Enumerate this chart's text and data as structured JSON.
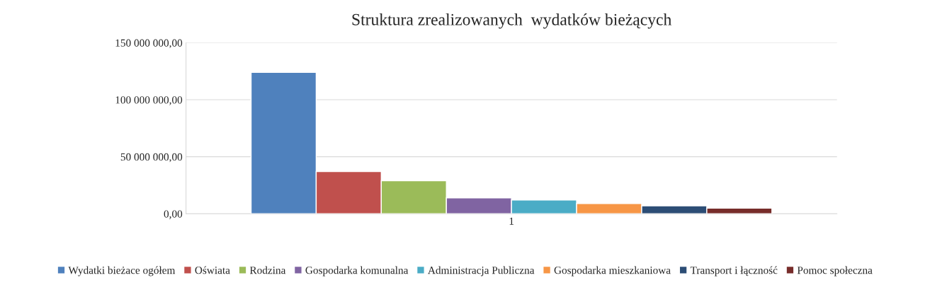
{
  "chart_data": {
    "type": "bar",
    "title": "Struktura zrealizowanych  wydatków bieżących",
    "categories": [
      "1"
    ],
    "series": [
      {
        "name": "Wydatki bieżace ogółem",
        "color": "#4f81bd",
        "values": [
          124000000
        ]
      },
      {
        "name": "Oświata",
        "color": "#c0504d",
        "values": [
          37000000
        ]
      },
      {
        "name": "Rodzina",
        "color": "#9bbb59",
        "values": [
          29000000
        ]
      },
      {
        "name": "Gospodarka komunalna",
        "color": "#8064a2",
        "values": [
          14000000
        ]
      },
      {
        "name": "Administracja Publiczna",
        "color": "#4bacc6",
        "values": [
          12000000
        ]
      },
      {
        "name": "Gospodarka mieszkaniowa",
        "color": "#f79646",
        "values": [
          9000000
        ]
      },
      {
        "name": "Transport i łączność",
        "color": "#2c4d75",
        "values": [
          7000000
        ]
      },
      {
        "name": "Pomoc społeczna",
        "color": "#772c2a",
        "values": [
          5000000
        ]
      }
    ],
    "ylim": [
      0,
      150000000
    ],
    "yticks": [
      {
        "value": 0,
        "label": "0,00"
      },
      {
        "value": 50000000,
        "label": "50 000 000,00"
      },
      {
        "value": 100000000,
        "label": "100 000 000,00"
      },
      {
        "value": 150000000,
        "label": "150 000 000,00"
      }
    ],
    "grid": "y",
    "legend": "bottom"
  }
}
